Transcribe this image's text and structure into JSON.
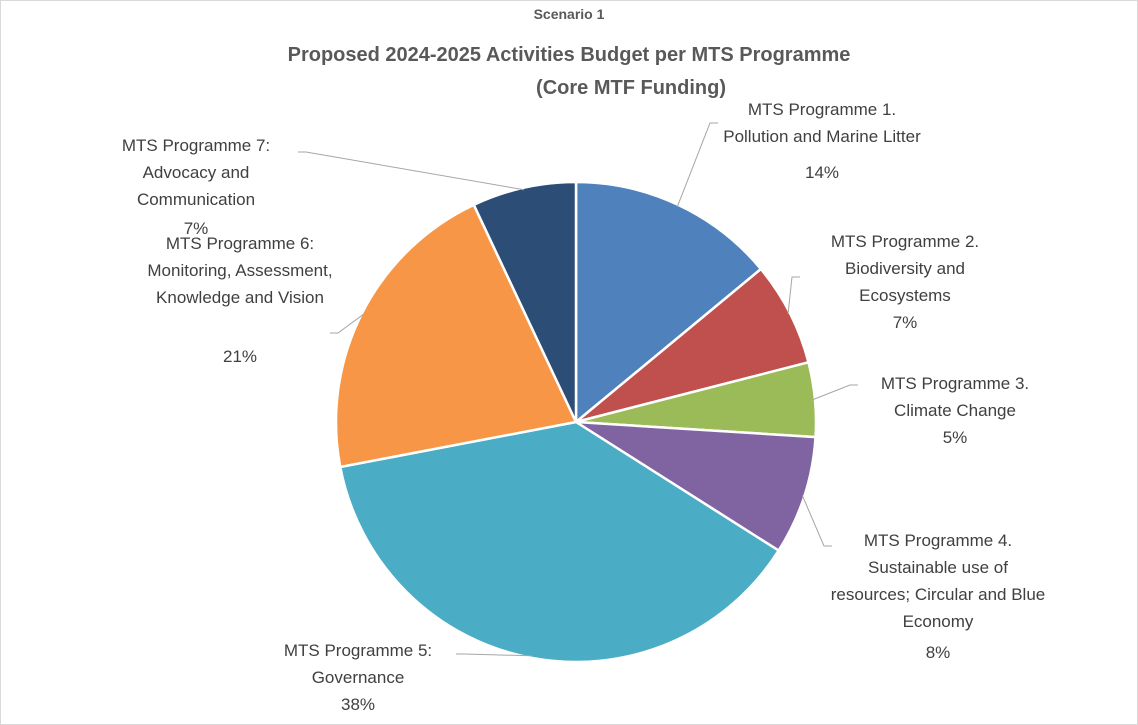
{
  "chart_data": {
    "type": "pie",
    "subtitle": "Scenario 1",
    "title": [
      "Proposed 2024-2025 Activities Budget per MTS Programme",
      "(Core MTF Funding)"
    ],
    "categories": [
      "MTS Programme 1. Pollution and Marine Litter",
      "MTS Programme 2. Biodiversity and Ecosystems",
      "MTS Programme 3. Climate Change",
      "MTS Programme 4. Sustainable use of resources; Circular and Blue Economy",
      "MTS Programme 5: Governance",
      "MTS Programme 6: Monitoring, Assessment, Knowledge and Vision",
      "MTS Programme 7: Advocacy and Communication"
    ],
    "values": [
      14,
      7,
      5,
      8,
      38,
      21,
      7
    ],
    "value_labels": [
      "14%",
      "7%",
      "5%",
      "8%",
      "38%",
      "21%",
      "7%"
    ],
    "colors": [
      "#4f81bd",
      "#c0504d",
      "#9bbb59",
      "#8064a2",
      "#4bacc6",
      "#f79646",
      "#2c4d75"
    ]
  }
}
